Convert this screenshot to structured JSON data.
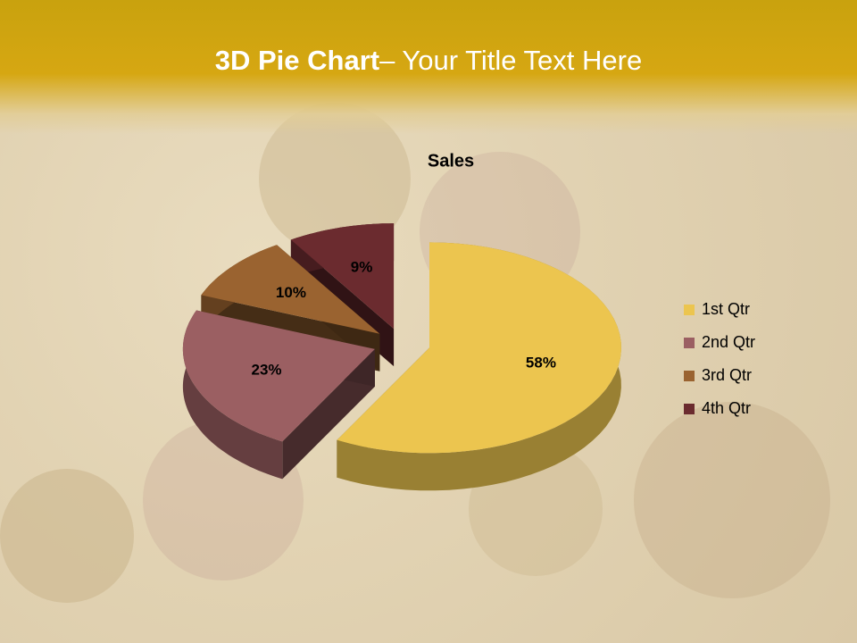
{
  "slide": {
    "title_bold": "3D Pie Chart",
    "title_rest": "– Your Title Text Here"
  },
  "chart_data": {
    "type": "pie",
    "title": "Sales",
    "categories": [
      "1st Qtr",
      "2nd Qtr",
      "3rd Qtr",
      "4th Qtr"
    ],
    "values": [
      58,
      23,
      10,
      9
    ],
    "value_labels": [
      "58%",
      "23%",
      "10%",
      "9%"
    ],
    "colors": [
      "#ecc54f",
      "#9b5f62",
      "#9a6330",
      "#6b2b2f"
    ],
    "legend": "right"
  }
}
